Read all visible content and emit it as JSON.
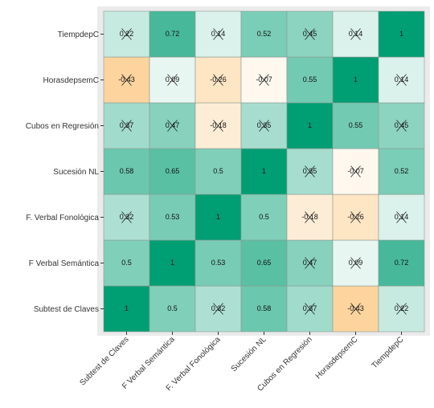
{
  "chart_data": {
    "type": "heatmap",
    "categories": [
      "Subtest de Claves",
      "F Verbal Semántica",
      "F. Verbal Fonológica",
      "Sucesión NL",
      "Cubos en Regresión",
      "HorasdepsemC",
      "TiempdepC"
    ],
    "values": [
      [
        1,
        0.5,
        0.32,
        0.58,
        0.37,
        -0.43,
        0.22
      ],
      [
        0.5,
        1,
        0.53,
        0.65,
        0.47,
        0.09,
        0.72
      ],
      [
        0.32,
        0.53,
        1,
        0.5,
        -0.18,
        -0.26,
        0.14
      ],
      [
        0.58,
        0.65,
        0.5,
        1,
        0.35,
        -0.07,
        0.52
      ],
      [
        0.37,
        0.47,
        -0.18,
        0.35,
        1,
        0.55,
        0.45
      ],
      [
        -0.43,
        0.09,
        -0.26,
        -0.07,
        0.55,
        1,
        0.14
      ],
      [
        0.22,
        0.72,
        0.14,
        0.52,
        0.45,
        0.14,
        1
      ]
    ],
    "crossed": [
      [
        false,
        false,
        true,
        false,
        true,
        true,
        true
      ],
      [
        false,
        false,
        false,
        false,
        true,
        true,
        false
      ],
      [
        true,
        false,
        false,
        false,
        true,
        true,
        true
      ],
      [
        false,
        false,
        false,
        false,
        true,
        true,
        false
      ],
      [
        true,
        true,
        true,
        true,
        false,
        false,
        true
      ],
      [
        true,
        true,
        true,
        true,
        false,
        false,
        true
      ],
      [
        true,
        false,
        true,
        false,
        true,
        true,
        false
      ]
    ],
    "zlim": [
      -1,
      1
    ],
    "color_scale": {
      "low": "#fa9b1d",
      "mid": "#ffffff",
      "high": "#009e73"
    }
  }
}
